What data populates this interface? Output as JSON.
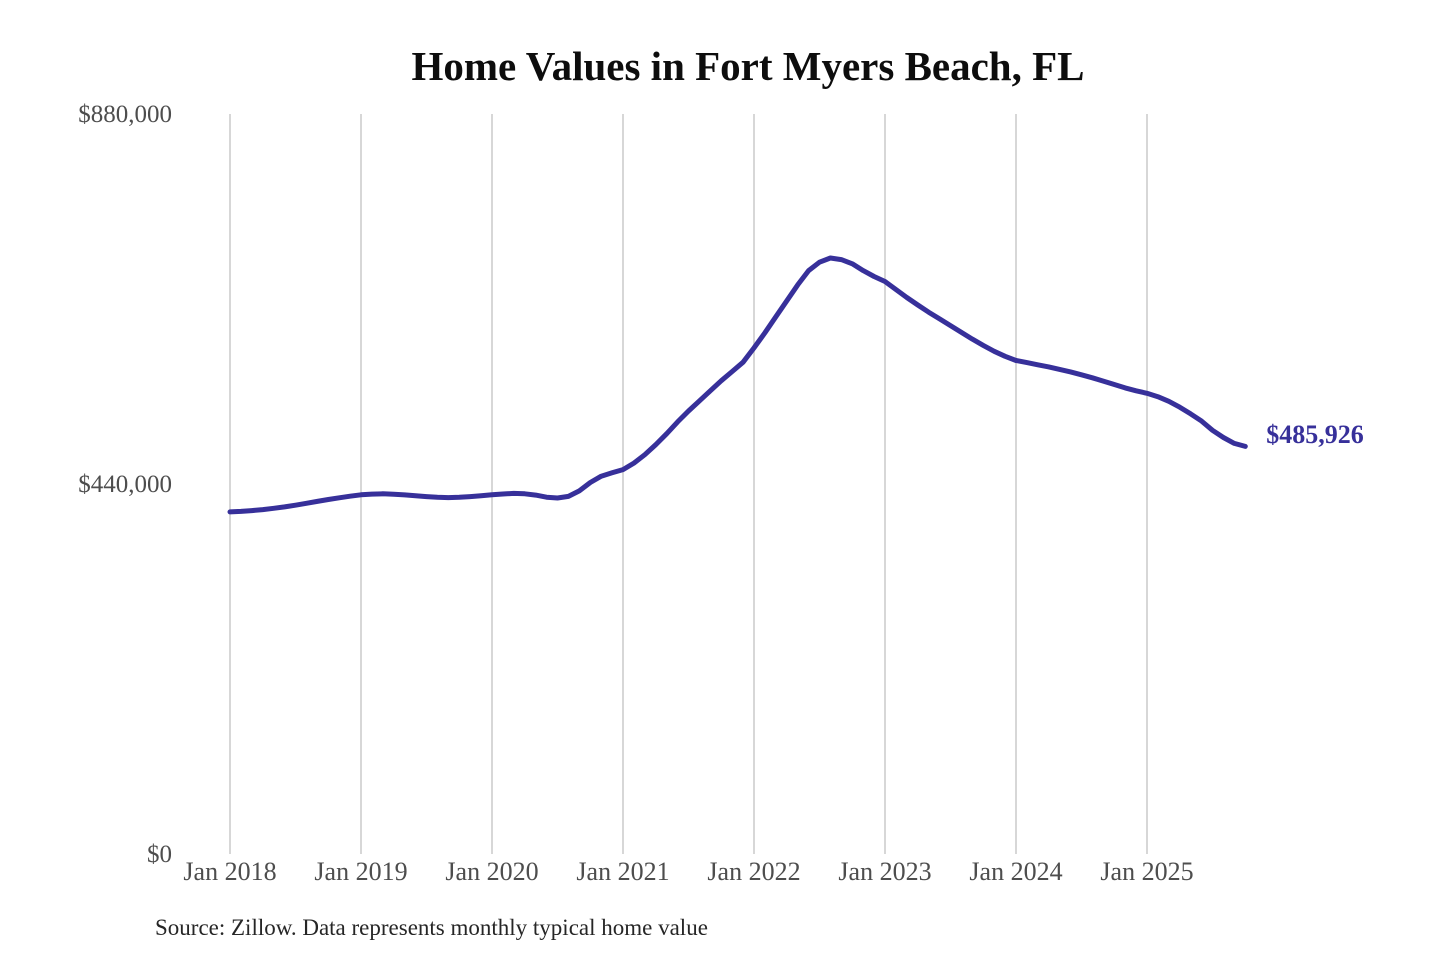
{
  "page": {
    "title": "Home Values in Fort Myers Beach, FL",
    "source_note": "Source: Zillow. Data represents monthly typical home value"
  },
  "chart_data": {
    "type": "line",
    "title": "Home Values in Fort Myers Beach, FL",
    "series_name": "Typical home value (USD)",
    "frequency": "monthly",
    "x_start": "Jan 2018",
    "x_end": "Oct 2025",
    "x_tick_labels": [
      "Jan 2018",
      "Jan 2019",
      "Jan 2020",
      "Jan 2021",
      "Jan 2022",
      "Jan 2023",
      "Jan 2024",
      "Jan 2025"
    ],
    "y_ticks": [
      {
        "label": "$0",
        "value": 0
      },
      {
        "label": "$440,000",
        "value": 440000
      },
      {
        "label": "$880,000",
        "value": 880000
      }
    ],
    "ylim": [
      0,
      880000
    ],
    "grid": "vertical",
    "legend": "none",
    "line_color": "#37309a",
    "grid_color": "#cdcdcd",
    "axis_label_color": "#4d4d4d",
    "end_label": "$485,926",
    "end_value": 485926,
    "values": [
      408000,
      408600,
      409500,
      410800,
      412300,
      414000,
      416000,
      418200,
      420500,
      422800,
      424800,
      426700,
      428300,
      429200,
      429500,
      429000,
      428200,
      427200,
      426200,
      425400,
      425000,
      425400,
      426200,
      427200,
      428300,
      429300,
      430000,
      429500,
      428000,
      425500,
      424500,
      426500,
      433000,
      443000,
      450500,
      454500,
      458300,
      466000,
      476000,
      488000,
      501000,
      515000,
      528000,
      540000,
      552000,
      564000,
      575000,
      586000,
      603000,
      621000,
      640000,
      659000,
      678000,
      695000,
      705000,
      710000,
      708000,
      703000,
      695000,
      688000,
      682000,
      672500,
      663000,
      654000,
      645500,
      637500,
      629500,
      621500,
      613500,
      606000,
      599000,
      593000,
      588000,
      585500,
      583000,
      580500,
      577500,
      574500,
      571000,
      567500,
      563500,
      559500,
      555500,
      552000,
      549000,
      545000,
      539500,
      532500,
      524500,
      516000,
      505000,
      496500,
      489500,
      485926
    ]
  }
}
